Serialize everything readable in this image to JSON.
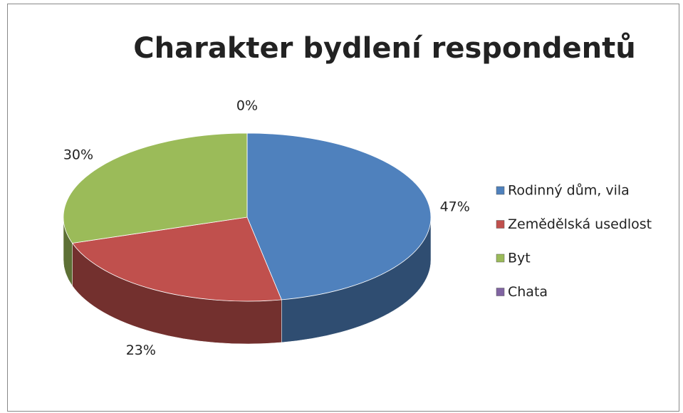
{
  "chart_data": {
    "type": "pie3d",
    "title": "Charakter bydlení respondentů",
    "categories": [
      "Rodinný dům, vila",
      "Zemědělská usedlost",
      "Byt",
      "Chata"
    ],
    "values": [
      47,
      23,
      30,
      0
    ],
    "value_labels": [
      "47%",
      "23%",
      "30%",
      "0%"
    ],
    "colors": [
      "#4f81bd",
      "#c0504d",
      "#9bbb59",
      "#8064a2"
    ],
    "legend": "right"
  }
}
